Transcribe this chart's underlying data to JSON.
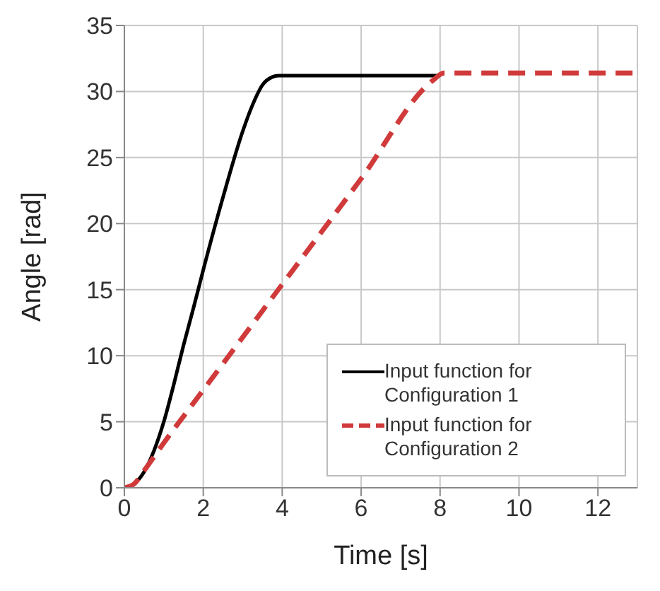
{
  "chart_data": {
    "type": "line",
    "xlabel": "Time [s]",
    "ylabel": "Angle [rad]",
    "xlim": [
      0,
      13
    ],
    "xticks": [
      0,
      2,
      4,
      6,
      8,
      10,
      12
    ],
    "ylim": [
      0,
      35
    ],
    "yticks": [
      0,
      5,
      10,
      15,
      20,
      25,
      30,
      35
    ],
    "grid": true,
    "legend": "bottom right",
    "marker": "none",
    "series": [
      {
        "name": "Input function for Configuration 1",
        "color": "#000000",
        "line_style": "solid",
        "x": [
          0,
          0.25,
          0.5,
          0.75,
          1,
          1.25,
          1.5,
          1.75,
          2,
          2.5,
          3,
          3.25,
          3.5,
          3.75,
          3.9,
          5,
          6,
          7,
          8
        ],
        "values": [
          0,
          0.3,
          1.2,
          2.8,
          5,
          7.8,
          10.8,
          13.6,
          16.5,
          22,
          27,
          29,
          30.5,
          31.1,
          31.2,
          31.2,
          31.2,
          31.2,
          31.2
        ]
      },
      {
        "name": "Input function for Configuration 2",
        "color": "#d03a3a",
        "line_style": "dashed",
        "x": [
          0,
          0.25,
          0.5,
          1,
          2,
          4,
          6,
          7.8,
          8.1,
          10,
          13
        ],
        "values": [
          0,
          0.3,
          1.3,
          3.4,
          7.4,
          15.4,
          23.4,
          30.8,
          31.4,
          31.4,
          31.4
        ]
      }
    ]
  }
}
